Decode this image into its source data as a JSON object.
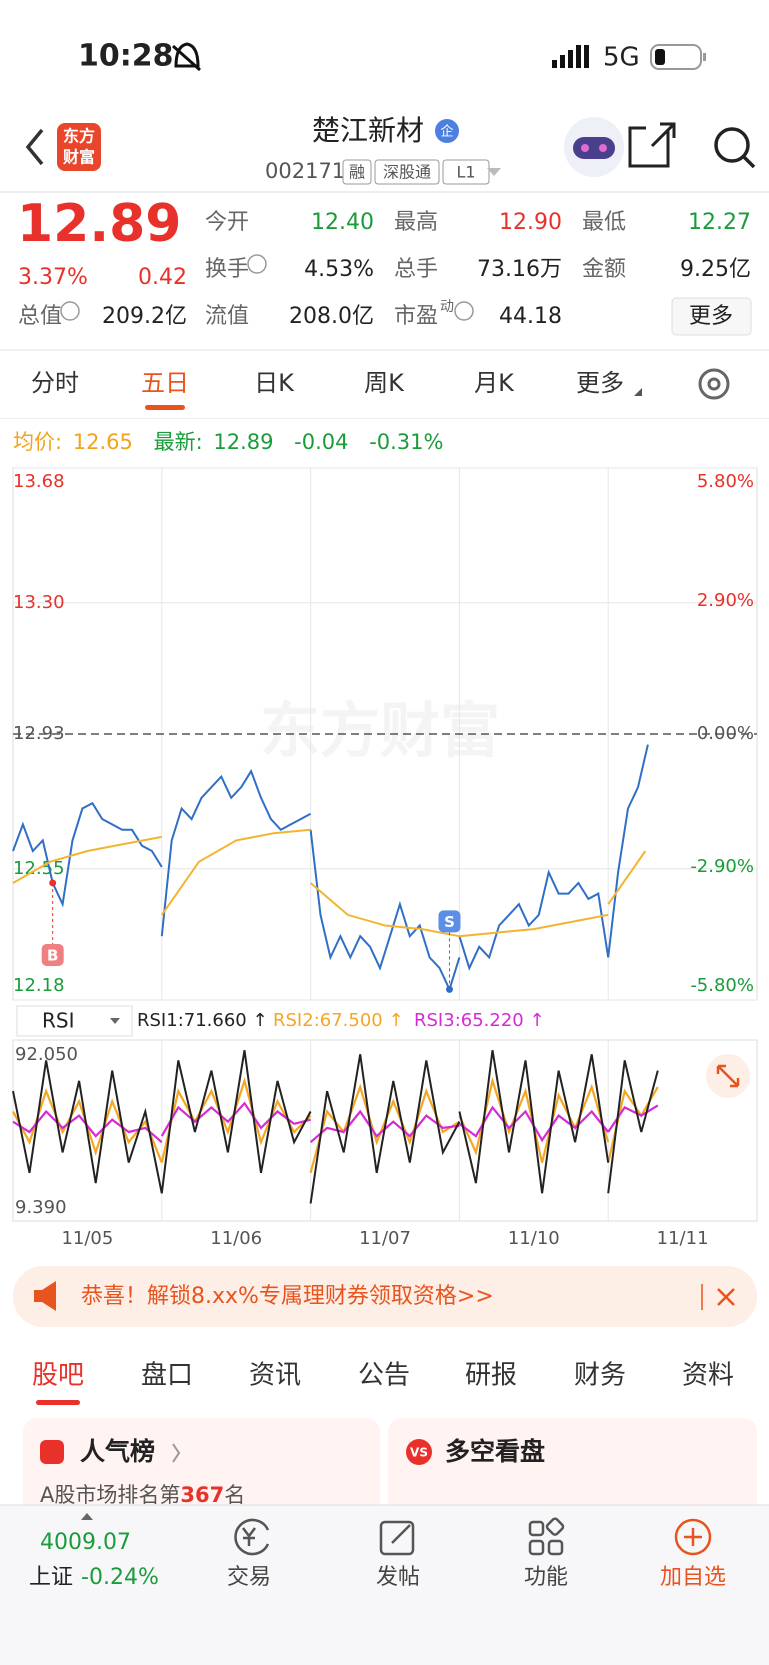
{
  "status": {
    "time": "10:28",
    "network": "5G"
  },
  "header": {
    "logo": [
      "东方",
      "财富"
    ],
    "title": "楚江新材",
    "badge": "企",
    "code": "002171",
    "tags": [
      "融",
      "深股通",
      "L1"
    ]
  },
  "quote": {
    "price": "12.89",
    "change_pct": "3.37%",
    "change": "0.42",
    "fields": [
      {
        "label": "今开",
        "value": "12.40"
      },
      {
        "label": "最高",
        "value": "12.90"
      },
      {
        "label": "最低",
        "value": "12.27"
      },
      {
        "label": "换手",
        "value": "4.53%"
      },
      {
        "label": "总手",
        "value": "73.16万"
      },
      {
        "label": "金额",
        "value": "9.25亿"
      },
      {
        "label": "总值",
        "value": "209.2亿"
      },
      {
        "label": "流值",
        "value": "208.0亿"
      },
      {
        "label": "市盈",
        "sup": "动",
        "value": "44.18"
      }
    ],
    "more": "更多"
  },
  "tabs": {
    "items": [
      "分时",
      "五日",
      "日K",
      "周K",
      "月K",
      "更多"
    ],
    "active": 1
  },
  "legend": {
    "avg_label": "均价:",
    "avg": "12.65",
    "latest_label": "最新:",
    "latest": "12.89",
    "change": "-0.04",
    "change_pct": "-0.31%"
  },
  "chart": {
    "ylim": [
      12.18,
      13.68
    ],
    "yticks": [
      13.68,
      {
        "value": 13.3,
        "label": "13.30"
      },
      12.93,
      12.55,
      12.18
    ],
    "y2lim": [
      -5.8,
      5.8
    ],
    "y2ticks": [
      {
        "value": 5.8,
        "label": "5.80%"
      },
      {
        "value": 2.9,
        "label": "2.90%"
      },
      {
        "value": 0,
        "label": "0.00%"
      },
      {
        "value": -2.9,
        "label": "-2.90%"
      },
      {
        "value": -5.8,
        "label": "-5.80%"
      }
    ],
    "dates": [
      "11/05",
      "11/06",
      "11/07",
      "11/10",
      "11/11"
    ],
    "price_color": "#2f6fc6",
    "avg_color": "#f3b431",
    "price": [
      [
        12.6,
        12.675,
        12.6,
        12.63,
        12.51,
        12.45,
        12.63,
        12.72,
        12.735,
        12.69,
        12.675,
        12.66,
        12.66,
        12.615,
        12.6,
        12.555
      ],
      [
        12.36,
        12.63,
        12.72,
        12.69,
        12.75,
        12.78,
        12.81,
        12.75,
        12.78,
        12.825,
        12.75,
        12.69,
        12.66,
        12.675,
        12.69,
        12.705
      ],
      [
        12.66,
        12.42,
        12.3,
        12.36,
        12.3,
        12.36,
        12.33,
        12.27,
        12.36,
        12.45,
        12.36,
        12.39,
        12.3,
        12.27,
        12.21,
        12.3
      ],
      [
        12.36,
        12.27,
        12.33,
        12.3,
        12.39,
        12.42,
        12.45,
        12.39,
        12.42,
        12.54,
        12.48,
        12.48,
        12.51,
        12.465,
        12.48,
        12.3
      ],
      [
        12.3,
        12.54,
        12.72,
        12.78,
        12.9
      ]
    ],
    "avg": [
      [
        12.51,
        12.57,
        12.6,
        12.62,
        12.64
      ],
      [
        12.42,
        12.57,
        12.63,
        12.65,
        12.66
      ],
      [
        12.51,
        12.42,
        12.39,
        12.38,
        12.36
      ],
      [
        12.36,
        12.37,
        12.38,
        12.4,
        12.42
      ],
      [
        12.45,
        12.6
      ]
    ],
    "markers": [
      "B",
      "S"
    ]
  },
  "rsi": {
    "selector": "RSI",
    "labels": [
      "RSI1:71.660 ↑",
      "RSI2:67.500 ↑",
      "RSI3:65.220 ↑"
    ],
    "colors": [
      "#222222",
      "#f5a623",
      "#d62ad6"
    ],
    "ylim": [
      {
        "value": 9.39,
        "label": "9.390"
      },
      {
        "value": 92.05,
        "label": "92.050"
      }
    ],
    "series": [
      [
        [
          70,
          30,
          85,
          40,
          75,
          25,
          80,
          35,
          60,
          20
        ],
        [
          20,
          85,
          50,
          80,
          40,
          90,
          30,
          75,
          45,
          60
        ],
        [
          15,
          70,
          40,
          88,
          30,
          75,
          35,
          85,
          40,
          55
        ],
        [
          60,
          25,
          90,
          40,
          85,
          20,
          80,
          45,
          88,
          35
        ],
        [
          20,
          85,
          50,
          80
        ]
      ],
      [
        [
          60,
          45,
          70,
          50,
          65,
          40,
          65,
          45,
          55,
          35
        ],
        [
          35,
          70,
          55,
          70,
          50,
          75,
          45,
          65,
          50,
          58
        ],
        [
          30,
          60,
          50,
          72,
          45,
          65,
          45,
          70,
          50,
          55
        ],
        [
          58,
          40,
          75,
          50,
          70,
          35,
          68,
          52,
          72,
          45
        ],
        [
          35,
          70,
          58,
          72
        ]
      ],
      [
        [
          55,
          50,
          60,
          52,
          58,
          48,
          56,
          50,
          52,
          45
        ],
        [
          48,
          62,
          55,
          62,
          55,
          64,
          52,
          60,
          54,
          56
        ],
        [
          45,
          52,
          50,
          60,
          48,
          55,
          48,
          58,
          52,
          53
        ],
        [
          54,
          48,
          62,
          52,
          60,
          46,
          58,
          52,
          60,
          50
        ],
        [
          50,
          62,
          58,
          63
        ]
      ]
    ]
  },
  "banner": "恭喜！解锁8.xx%专属理财券领取资格>>",
  "section_tabs": {
    "items": [
      "股吧",
      "盘口",
      "资讯",
      "公告",
      "研报",
      "财务",
      "资料"
    ],
    "active": 0
  },
  "cards": [
    {
      "title": "人气榜",
      "text": "A股市场排名第",
      "rank": "367",
      "suffix": "名"
    },
    {
      "title": "多空看盘"
    }
  ],
  "bottom_nav": {
    "index_value": "4009.07",
    "index_name": "上证",
    "index_change": "-0.24%",
    "items": [
      "交易",
      "发帖",
      "功能",
      "加自选"
    ]
  }
}
